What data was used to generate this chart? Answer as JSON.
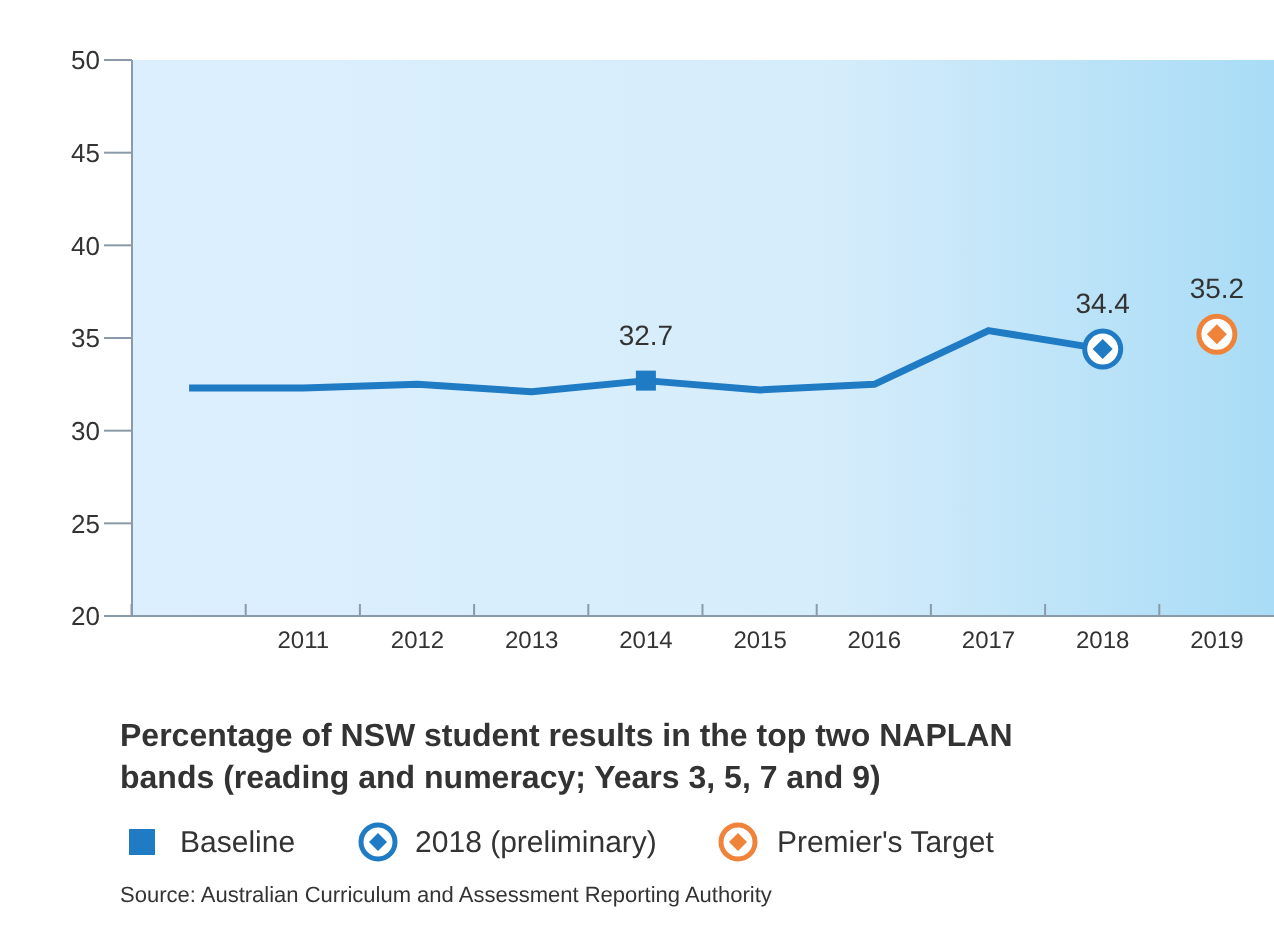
{
  "chart_data": {
    "type": "line",
    "title": "Percentage of NSW student results in the top two NAPLAN bands (reading and numeracy; Years 3, 5, 7 and 9)",
    "categories": [
      null,
      "2011",
      "2012",
      "2013",
      "2014",
      "2015",
      "2016",
      "2017",
      "2018",
      "2019"
    ],
    "series": [
      {
        "color": "#1f7bc4",
        "values": [
          32.3,
          32.3,
          32.5,
          32.1,
          32.7,
          32.2,
          32.5,
          35.4,
          34.4,
          null
        ]
      },
      {
        "type": "scatter",
        "name": "Baseline",
        "marker": "square",
        "color": "#1f7bc4",
        "values": [
          null,
          null,
          null,
          null,
          32.7,
          null,
          null,
          null,
          null,
          null
        ],
        "value_labels": [
          null,
          null,
          null,
          null,
          "32.7",
          null,
          null,
          null,
          null,
          null
        ]
      },
      {
        "type": "scatter",
        "name": "2018 (preliminary)",
        "marker": "circle",
        "color": "#1f7bc4",
        "values": [
          null,
          null,
          null,
          null,
          null,
          null,
          null,
          null,
          34.4,
          null
        ],
        "value_labels": [
          null,
          null,
          null,
          null,
          null,
          null,
          null,
          null,
          "34.4",
          null
        ]
      },
      {
        "type": "scatter",
        "name": "Premier's Target",
        "marker": "circle",
        "color": "#f0833a",
        "values": [
          null,
          null,
          null,
          null,
          null,
          null,
          null,
          null,
          null,
          35.2
        ],
        "value_labels": [
          null,
          null,
          null,
          null,
          null,
          null,
          null,
          null,
          null,
          "35.2"
        ]
      }
    ],
    "ylim": [
      20,
      50
    ],
    "yticks": [
      20,
      25,
      30,
      35,
      40,
      45,
      50
    ],
    "legend": "bottom",
    "annotations": [
      "Source: Australian Curriculum and Assessment Reporting Authority"
    ]
  }
}
